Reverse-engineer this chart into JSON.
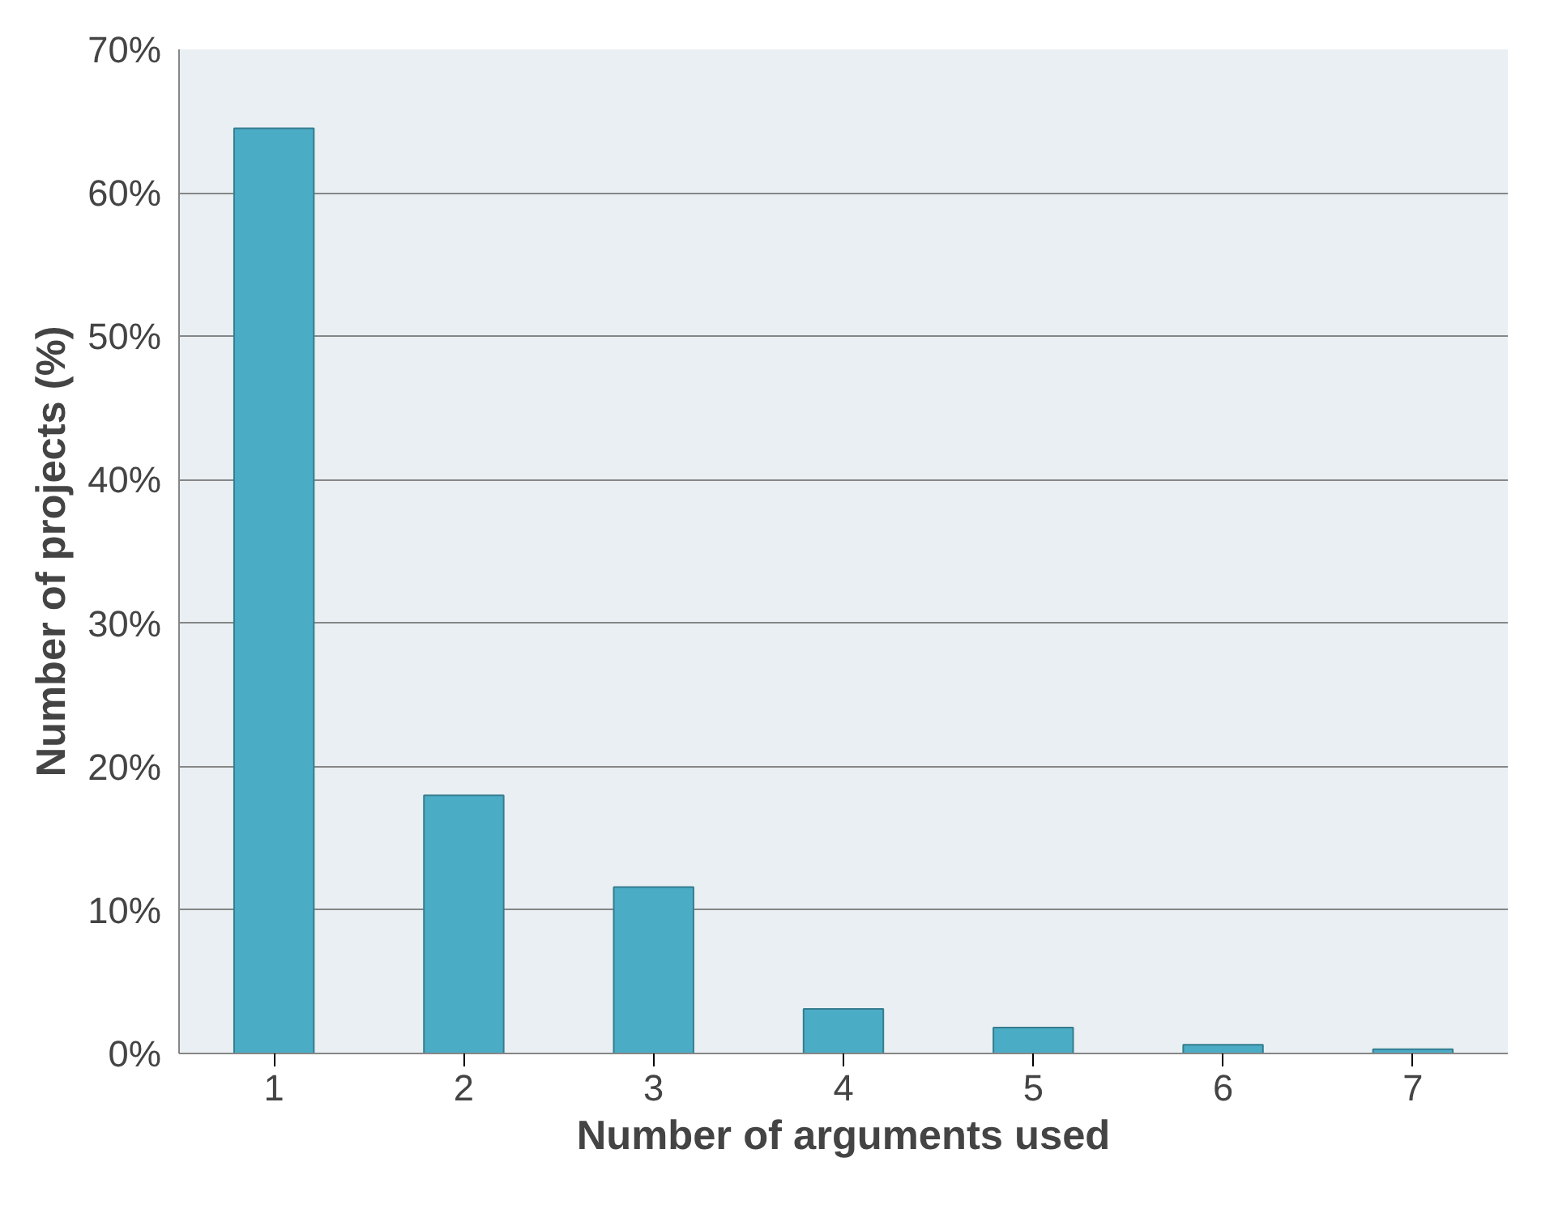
{
  "chart_data": {
    "type": "bar",
    "xlabel": "Number of arguments used",
    "ylabel": "Number of projects (%)",
    "categories": [
      "1",
      "2",
      "3",
      "4",
      "5",
      "6",
      "7"
    ],
    "values": [
      64.5,
      18.0,
      11.6,
      3.1,
      1.8,
      0.6,
      0.3
    ],
    "color": "#4bacc6",
    "ylim": [
      0,
      70
    ],
    "yticks": [
      {
        "value": 0,
        "label": "0%"
      },
      {
        "value": 10,
        "label": "10%"
      },
      {
        "value": 20,
        "label": "20%"
      },
      {
        "value": 30,
        "label": "30%"
      },
      {
        "value": 40,
        "label": "40%"
      },
      {
        "value": 50,
        "label": "50%"
      },
      {
        "value": 60,
        "label": "60%"
      },
      {
        "value": 70,
        "label": "70%"
      }
    ],
    "grid": "y"
  }
}
